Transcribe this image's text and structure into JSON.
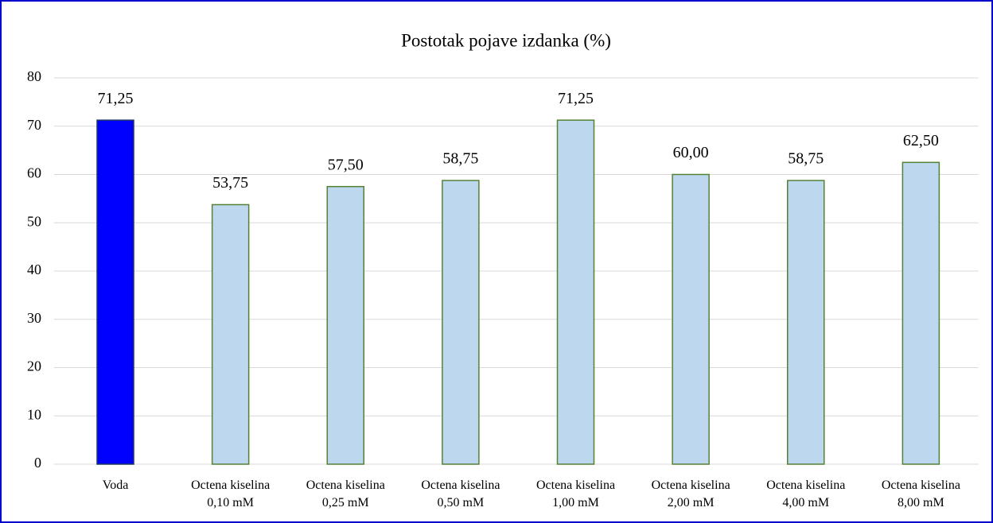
{
  "chart_data": {
    "type": "bar",
    "title": "Postotak pojave izdanka (%)",
    "categories": [
      [
        "Voda"
      ],
      [
        "Octena kiselina",
        "0,10 mM"
      ],
      [
        "Octena kiselina",
        "0,25 mM"
      ],
      [
        "Octena kiselina",
        "0,50 mM"
      ],
      [
        "Octena kiselina",
        "1,00 mM"
      ],
      [
        "Octena kiselina",
        "2,00 mM"
      ],
      [
        "Octena kiselina",
        "4,00 mM"
      ],
      [
        "Octena kiselina",
        "8,00 mM"
      ]
    ],
    "values": [
      71.25,
      53.75,
      57.5,
      58.75,
      71.25,
      60,
      58.75,
      62.5
    ],
    "value_labels": [
      "71,25",
      "53,75",
      "57,50",
      "58,75",
      "71,25",
      "60,00",
      "58,75",
      "62,50"
    ],
    "colors": [
      "#0000ff",
      "#bdd7ee",
      "#bdd7ee",
      "#bdd7ee",
      "#bdd7ee",
      "#bdd7ee",
      "#bdd7ee",
      "#bdd7ee"
    ],
    "edge_colors": [
      "#1f3864",
      "#548235",
      "#548235",
      "#548235",
      "#548235",
      "#548235",
      "#548235",
      "#548235"
    ],
    "ylim": [
      0,
      80
    ],
    "yticks": [
      0,
      10,
      20,
      30,
      40,
      50,
      60,
      70,
      80
    ],
    "grid": true
  }
}
